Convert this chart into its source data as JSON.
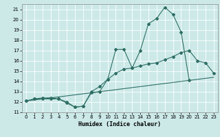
{
  "xlabel": "Humidex (Indice chaleur)",
  "bg_color": "#cce9e8",
  "line_color": "#2e6e65",
  "xlim": [
    -0.5,
    23.5
  ],
  "ylim": [
    11,
    21.5
  ],
  "yticks": [
    11,
    12,
    13,
    14,
    15,
    16,
    17,
    18,
    19,
    20,
    21
  ],
  "xticks": [
    0,
    1,
    2,
    3,
    4,
    5,
    6,
    7,
    8,
    9,
    10,
    11,
    12,
    13,
    14,
    15,
    16,
    17,
    18,
    19,
    20,
    21,
    22,
    23
  ],
  "line1_x": [
    0,
    1,
    2,
    3,
    4,
    5,
    6,
    7,
    8,
    9,
    10,
    11,
    12,
    13,
    14,
    15,
    16,
    17,
    18,
    19,
    20,
    21,
    22,
    23
  ],
  "line1_y": [
    12.1,
    12.3,
    12.4,
    12.4,
    12.3,
    11.9,
    11.5,
    11.6,
    12.9,
    13.0,
    14.2,
    17.1,
    17.1,
    15.3,
    17.0,
    19.6,
    20.1,
    21.2,
    20.5,
    18.8,
    14.1,
    null,
    null,
    null
  ],
  "line2_x": [
    0,
    1,
    2,
    3,
    4,
    5,
    6,
    7,
    8,
    9,
    10,
    11,
    12,
    13,
    14,
    15,
    16,
    17,
    18,
    19,
    20,
    21,
    22,
    23
  ],
  "line2_y": [
    12.1,
    12.3,
    12.3,
    12.3,
    12.3,
    12.0,
    11.5,
    11.6,
    13.0,
    13.5,
    14.2,
    14.8,
    15.2,
    15.3,
    15.5,
    15.7,
    15.8,
    16.1,
    16.4,
    16.8,
    17.0,
    16.0,
    15.8,
    14.8
  ],
  "line3_x": [
    0,
    23
  ],
  "line3_y": [
    12.1,
    14.4
  ]
}
